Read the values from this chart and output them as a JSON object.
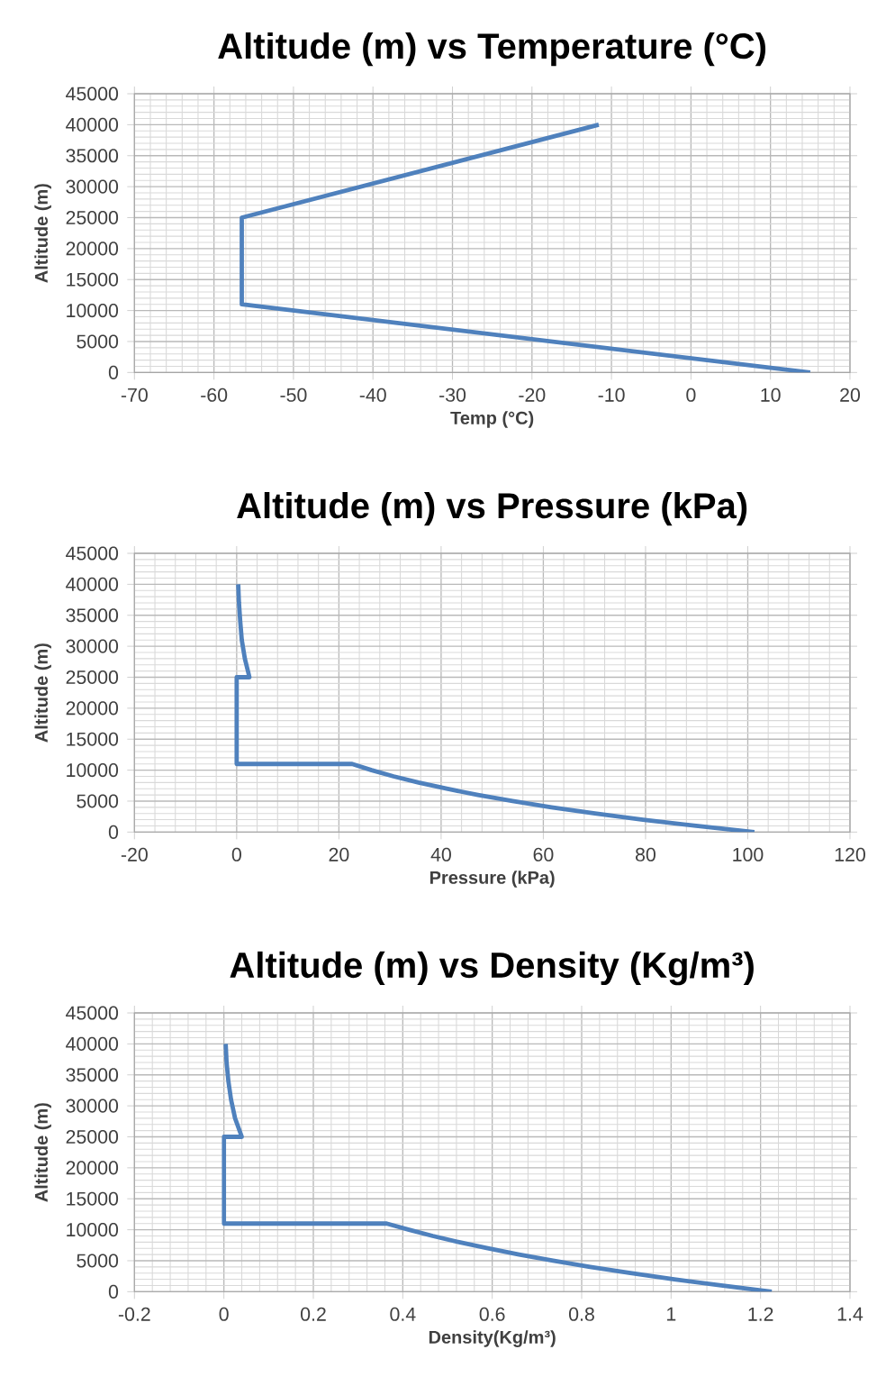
{
  "chart_data": [
    {
      "type": "line",
      "title": "Altitude (m) vs Temperature (°C)",
      "xlabel": "Temp (°C)",
      "ylabel": "Altitude (m)",
      "xlim": [
        -70,
        20
      ],
      "xticks": [
        -70,
        -60,
        -50,
        -40,
        -30,
        -20,
        -10,
        0,
        10,
        20
      ],
      "ylim": [
        0,
        45000
      ],
      "yticks": [
        0,
        5000,
        10000,
        15000,
        20000,
        25000,
        30000,
        35000,
        40000,
        45000
      ],
      "grid": true,
      "series": [
        {
          "color": "#4f81bd",
          "x": [
            15,
            -56.5,
            -56.5,
            -11.6
          ],
          "values": [
            0,
            11000,
            25000,
            40000
          ]
        }
      ]
    },
    {
      "type": "line",
      "title": "Altitude (m) vs Pressure (kPa)",
      "xlabel": "Pressure (kPa)",
      "ylabel": "Altitude (m)",
      "xlim": [
        -20,
        120
      ],
      "xticks": [
        -20,
        0,
        20,
        40,
        60,
        80,
        100,
        120
      ],
      "ylim": [
        0,
        45000
      ],
      "yticks": [
        0,
        5000,
        10000,
        15000,
        20000,
        25000,
        30000,
        35000,
        40000,
        45000
      ],
      "grid": true,
      "series": [
        {
          "color": "#4f81bd",
          "x": [
            101.3,
            89.9,
            79.5,
            70.1,
            61.6,
            54.0,
            47.2,
            41.1,
            35.6,
            30.7,
            26.4,
            22.6,
            0,
            0,
            2.5,
            1.6,
            1.0,
            0.7,
            0.45,
            0.3
          ],
          "values": [
            0,
            1000,
            2000,
            3000,
            4000,
            5000,
            6000,
            7000,
            8000,
            9000,
            10000,
            11000,
            11000,
            25000,
            25000,
            28000,
            31000,
            34000,
            37000,
            40000
          ]
        }
      ]
    },
    {
      "type": "line",
      "title": "Altitude (m) vs Density (Kg/m³)",
      "xlabel": "Density(Kg/m³)",
      "ylabel": "Altitude (m)",
      "xlim": [
        -0.2,
        1.4
      ],
      "xticks": [
        -0.2,
        0,
        0.2,
        0.4,
        0.6,
        0.8,
        1,
        1.2,
        1.4
      ],
      "ylim": [
        0,
        45000
      ],
      "yticks": [
        0,
        5000,
        10000,
        15000,
        20000,
        25000,
        30000,
        35000,
        40000,
        45000
      ],
      "grid": true,
      "series": [
        {
          "color": "#4f81bd",
          "x": [
            1.225,
            1.112,
            1.007,
            0.909,
            0.819,
            0.736,
            0.66,
            0.59,
            0.526,
            0.467,
            0.414,
            0.364,
            0,
            0,
            0.04,
            0.025,
            0.016,
            0.01,
            0.006,
            0.004
          ],
          "values": [
            0,
            1000,
            2000,
            3000,
            4000,
            5000,
            6000,
            7000,
            8000,
            9000,
            10000,
            11000,
            11000,
            25000,
            25000,
            28000,
            31000,
            34000,
            37000,
            40000
          ]
        }
      ]
    }
  ]
}
